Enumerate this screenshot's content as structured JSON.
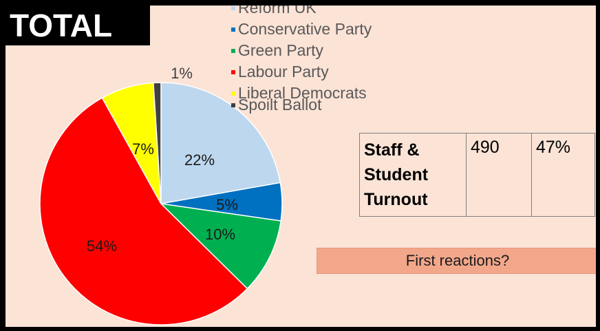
{
  "title": "TOTAL",
  "chart_data": {
    "type": "pie",
    "slices": [
      {
        "label": "Reform UK",
        "value": 22,
        "display": "22%",
        "color": "#bdd7ee"
      },
      {
        "label": "Conservative Party",
        "value": 5,
        "display": "5%",
        "color": "#0070c0"
      },
      {
        "label": "Green Party",
        "value": 10,
        "display": "10%",
        "color": "#00b050"
      },
      {
        "label": "Labour Party",
        "value": 54,
        "display": "54%",
        "color": "#ff0000"
      },
      {
        "label": "Liberal Democrats",
        "value": 7,
        "display": "7%",
        "color": "#ffff00"
      },
      {
        "label": "Spoilt Ballot",
        "value": 1,
        "display": "1%",
        "color": "#404040"
      }
    ],
    "legend_position": "top-right"
  },
  "turnout": {
    "label": "Staff & Student Turnout",
    "count": "490",
    "percent": "47%"
  },
  "reactions_label": "First reactions?"
}
